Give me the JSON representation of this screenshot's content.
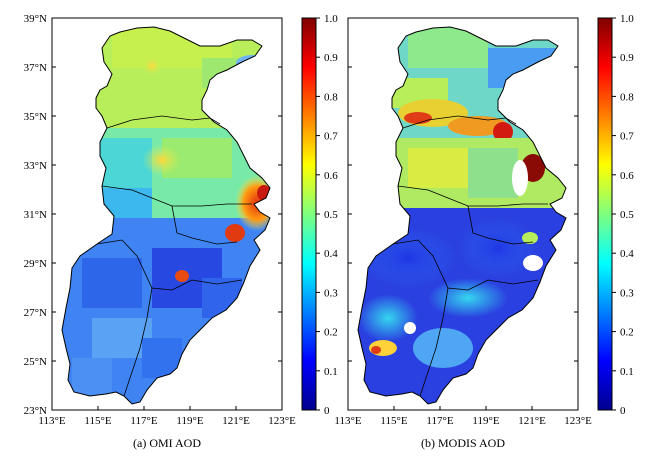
{
  "panels": [
    {
      "caption": "(a) OMI AOD",
      "x_ticks": [
        "113°E",
        "115°E",
        "117°E",
        "119°E",
        "121°E",
        "123°E"
      ],
      "y_ticks": [
        "39°N",
        "37°N",
        "35°N",
        "33°N",
        "31°N",
        "29°N",
        "27°N",
        "25°N",
        "23°N"
      ],
      "colorbar_ticks": [
        "1.0",
        "0.9",
        "0.8",
        "0.7",
        "0.6",
        "0.5",
        "0.4",
        "0.3",
        "0.2",
        "0.1",
        "0"
      ]
    },
    {
      "caption": "(b) MODIS AOD",
      "x_ticks": [
        "113°E",
        "115°E",
        "117°E",
        "119°E",
        "121°E",
        "123°E"
      ],
      "y_ticks": [],
      "colorbar_ticks": [
        "1.0",
        "0.9",
        "0.8",
        "0.7",
        "0.6",
        "0.5",
        "0.4",
        "0.3",
        "0.2",
        "0.1",
        "0"
      ]
    }
  ],
  "chart_data": [
    {
      "type": "heatmap",
      "title": "(a) OMI AOD",
      "xlim": [
        113,
        123
      ],
      "ylim": [
        23,
        39
      ],
      "color_range": [
        0,
        1.0
      ],
      "colormap": "jet"
    },
    {
      "type": "heatmap",
      "title": "(b) MODIS AOD",
      "xlim": [
        113,
        123
      ],
      "ylim": [
        23,
        39
      ],
      "color_range": [
        0,
        1.0
      ],
      "colormap": "jet"
    }
  ]
}
